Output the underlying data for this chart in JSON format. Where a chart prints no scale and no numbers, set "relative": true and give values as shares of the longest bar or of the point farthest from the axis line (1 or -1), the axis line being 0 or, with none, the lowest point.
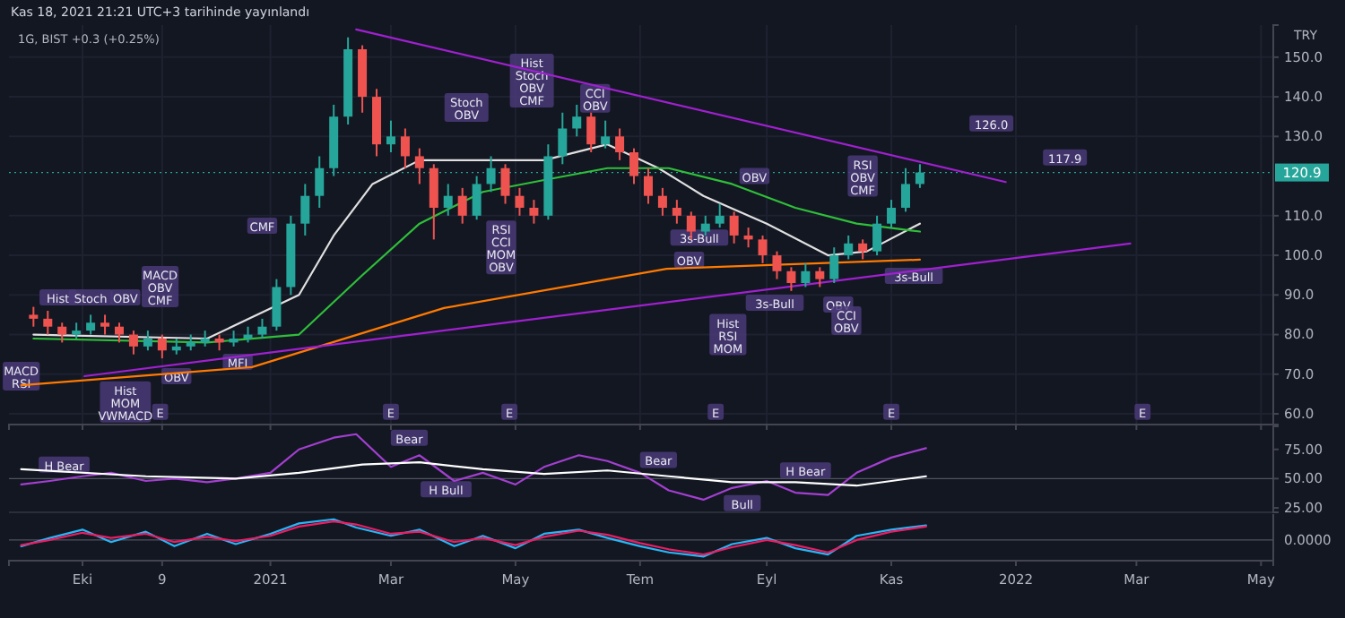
{
  "chart_data": [
    {
      "type": "candlestick",
      "title": "Kas 18, 2021 21:21 UTC+3 tarihinde yayınlandı",
      "subtitle": "1G, BIST  +0.3 (+0.25%)",
      "ylabel": "TRY",
      "xlim": [
        "2020-08-26",
        "2022-05-07"
      ],
      "ylim": [
        57.3,
        158.1
      ],
      "xticks": [
        {
          "value": "2020-10-01",
          "label": null
        },
        {
          "value": "2020-11-09",
          "label": null
        },
        {
          "value": "2021-01-01",
          "label": null
        },
        {
          "value": "2021-03-01",
          "label": null
        },
        {
          "value": "2021-05-01",
          "label": null
        },
        {
          "value": "2021-07-01",
          "label": null
        },
        {
          "value": "2021-09-01",
          "label": null
        },
        {
          "value": "2021-11-01",
          "label": null
        },
        {
          "value": "2022-01-01",
          "label": null
        },
        {
          "value": "2022-03-01",
          "label": null
        },
        {
          "value": "2022-05-01",
          "label": null
        }
      ],
      "yticks": [
        {
          "value": 60,
          "label": "60.0"
        },
        {
          "value": 70,
          "label": "70.0"
        },
        {
          "value": 80,
          "label": "80.0"
        },
        {
          "value": 90,
          "label": "90.0"
        },
        {
          "value": 100,
          "label": "100.0"
        },
        {
          "value": 110,
          "label": "110.0"
        },
        {
          "value": 130,
          "label": "130.0"
        },
        {
          "value": 140,
          "label": "140.0"
        },
        {
          "value": 150,
          "label": "150.0"
        }
      ],
      "tick_labels": "y",
      "grid": true,
      "x": [
        "2020-09-07",
        "2020-09-14",
        "2020-09-21",
        "2020-09-28",
        "2020-10-05",
        "2020-10-12",
        "2020-10-19",
        "2020-10-26",
        "2020-11-02",
        "2020-11-09",
        "2020-11-16",
        "2020-11-23",
        "2020-11-30",
        "2020-12-07",
        "2020-12-14",
        "2020-12-21",
        "2020-12-28",
        "2021-01-04",
        "2021-01-11",
        "2021-01-18",
        "2021-01-25",
        "2021-02-01",
        "2021-02-08",
        "2021-02-15",
        "2021-02-22",
        "2021-03-01",
        "2021-03-08",
        "2021-03-15",
        "2021-03-22",
        "2021-03-29",
        "2021-04-05",
        "2021-04-12",
        "2021-04-19",
        "2021-04-26",
        "2021-05-03",
        "2021-05-10",
        "2021-05-17",
        "2021-05-24",
        "2021-05-31",
        "2021-06-07",
        "2021-06-14",
        "2021-06-21",
        "2021-06-28",
        "2021-07-05",
        "2021-07-12",
        "2021-07-19",
        "2021-07-26",
        "2021-08-02",
        "2021-08-09",
        "2021-08-16",
        "2021-08-23",
        "2021-08-30",
        "2021-09-06",
        "2021-09-13",
        "2021-09-20",
        "2021-09-27",
        "2021-10-04",
        "2021-10-11",
        "2021-10-18",
        "2021-10-25",
        "2021-11-01",
        "2021-11-08",
        "2021-11-15"
      ],
      "ohlc": [
        [
          85,
          87,
          82,
          84
        ],
        [
          84,
          86,
          80,
          82
        ],
        [
          82,
          83,
          78,
          80
        ],
        [
          80,
          83,
          79,
          81
        ],
        [
          81,
          85,
          80,
          83
        ],
        [
          83,
          85,
          80,
          82
        ],
        [
          82,
          83,
          78,
          80
        ],
        [
          80,
          81,
          75,
          77
        ],
        [
          77,
          81,
          76,
          79
        ],
        [
          79,
          80,
          74,
          76
        ],
        [
          76,
          79,
          75,
          77
        ],
        [
          77,
          80,
          76,
          78
        ],
        [
          78,
          81,
          77,
          79
        ],
        [
          79,
          80,
          76,
          78
        ],
        [
          78,
          81,
          77,
          79
        ],
        [
          79,
          82,
          78,
          80
        ],
        [
          80,
          84,
          79,
          82
        ],
        [
          82,
          94,
          81,
          92
        ],
        [
          92,
          110,
          90,
          108
        ],
        [
          108,
          118,
          105,
          115
        ],
        [
          115,
          125,
          112,
          122
        ],
        [
          122,
          138,
          120,
          135
        ],
        [
          135,
          155,
          133,
          152
        ],
        [
          152,
          153,
          136,
          140
        ],
        [
          140,
          142,
          125,
          128
        ],
        [
          128,
          134,
          126,
          130
        ],
        [
          130,
          132,
          122,
          125
        ],
        [
          125,
          127,
          118,
          122
        ],
        [
          122,
          123,
          104,
          112
        ],
        [
          112,
          118,
          110,
          115
        ],
        [
          115,
          117,
          108,
          110
        ],
        [
          110,
          120,
          109,
          118
        ],
        [
          118,
          125,
          116,
          122
        ],
        [
          122,
          123,
          113,
          115
        ],
        [
          115,
          117,
          110,
          112
        ],
        [
          112,
          114,
          108,
          110
        ],
        [
          110,
          128,
          109,
          125
        ],
        [
          125,
          136,
          123,
          132
        ],
        [
          132,
          138,
          130,
          135
        ],
        [
          135,
          136,
          126,
          128
        ],
        [
          128,
          134,
          127,
          130
        ],
        [
          130,
          132,
          124,
          126
        ],
        [
          126,
          127,
          118,
          120
        ],
        [
          120,
          122,
          113,
          115
        ],
        [
          115,
          117,
          110,
          112
        ],
        [
          112,
          114,
          108,
          110
        ],
        [
          110,
          111,
          104,
          106
        ],
        [
          106,
          110,
          105,
          108
        ],
        [
          108,
          113,
          107,
          110
        ],
        [
          110,
          111,
          103,
          105
        ],
        [
          105,
          107,
          102,
          104
        ],
        [
          104,
          105,
          98,
          100
        ],
        [
          100,
          101,
          94,
          96
        ],
        [
          96,
          97,
          91,
          93
        ],
        [
          93,
          98,
          92,
          96
        ],
        [
          96,
          97,
          92,
          94
        ],
        [
          94,
          102,
          93,
          100
        ],
        [
          100,
          105,
          99,
          103
        ],
        [
          103,
          104,
          99,
          101
        ],
        [
          101,
          110,
          100,
          108
        ],
        [
          108,
          114,
          107,
          112
        ],
        [
          112,
          122,
          111,
          118
        ],
        [
          118,
          123,
          117,
          120.9
        ]
      ],
      "series": [
        {
          "type": "line",
          "color": "#e0e0e0",
          "x": [
            "2020-09-07",
            "2020-12-01",
            "2021-01-15",
            "2021-02-01",
            "2021-02-20",
            "2021-03-15",
            "2021-04-15",
            "2021-05-15",
            "2021-06-15",
            "2021-07-10",
            "2021-08-01",
            "2021-09-01",
            "2021-10-01",
            "2021-10-20",
            "2021-11-15"
          ],
          "values": [
            80,
            79,
            90,
            105,
            118,
            124,
            124,
            124,
            128,
            122,
            115,
            108,
            100,
            101,
            108
          ]
        },
        {
          "type": "line",
          "color": "#2fbf3a",
          "x": [
            "2020-09-07",
            "2020-12-01",
            "2021-01-15",
            "2021-02-15",
            "2021-03-15",
            "2021-04-15",
            "2021-05-15",
            "2021-06-15",
            "2021-07-15",
            "2021-08-15",
            "2021-09-15",
            "2021-10-15",
            "2021-11-15"
          ],
          "values": [
            79,
            78,
            80,
            95,
            108,
            116,
            119,
            122,
            122,
            118,
            112,
            108,
            106
          ]
        },
        {
          "type": "line",
          "color": "#ff7a00",
          "x": [
            "2020-09-01",
            "2020-12-23",
            "2021-03-27",
            "2021-07-14",
            "2021-11-15"
          ],
          "values": [
            67.2,
            71.8,
            86.7,
            96.6,
            98.9
          ]
        },
        {
          "type": "line",
          "color": "#a020d0",
          "x": [
            "2021-02-12",
            "2021-12-27"
          ],
          "values": [
            157,
            118.5
          ]
        },
        {
          "type": "line",
          "color": "#a020d0",
          "x": [
            "2020-10-02",
            "2022-02-26"
          ],
          "values": [
            69.5,
            103
          ]
        }
      ],
      "ref_lines": [
        {
          "axis": "y",
          "value": 120.9,
          "label": "120.9",
          "color": "#26a69a"
        }
      ],
      "annotations": [
        {
          "text": "MACD\nRSI",
          "x": "2020-09-01",
          "y": 69.5
        },
        {
          "text": "Hist",
          "x": "2020-09-19",
          "y": 89.4
        },
        {
          "text": "Stoch",
          "x": "2020-10-05",
          "y": 89.4
        },
        {
          "text": "OBV",
          "x": "2020-10-22",
          "y": 89.4
        },
        {
          "text": "MACD\nOBV\nCMF",
          "x": "2020-11-08",
          "y": 92.1
        },
        {
          "text": "Hist\nMOM\nVWMACD",
          "x": "2020-10-22",
          "y": 63
        },
        {
          "text": "OBV",
          "x": "2020-11-16",
          "y": 69.5
        },
        {
          "text": "MFI",
          "x": "2020-12-16",
          "y": 73.1
        },
        {
          "text": "CMF",
          "x": "2020-12-28",
          "y": 107.5
        },
        {
          "text": "Stoch\nOBV",
          "x": "2021-04-07",
          "y": 137.3
        },
        {
          "text": "Hist\nStoch\nOBV\nCMF",
          "x": "2021-05-09",
          "y": 144.1
        },
        {
          "text": "CCI\nOBV",
          "x": "2021-06-09",
          "y": 139.6
        },
        {
          "text": "RSI\nCCI\nMOM\nOBV",
          "x": "2021-04-24",
          "y": 102
        },
        {
          "text": "OBV",
          "x": "2021-07-25",
          "y": 98.9
        },
        {
          "text": "Hist\nRSI\nMOM",
          "x": "2021-08-13",
          "y": 80
        },
        {
          "text": "OBV",
          "x": "2021-08-26",
          "y": 120
        },
        {
          "text": "OBV",
          "x": "2021-10-06",
          "y": 87.6
        },
        {
          "text": "CCI\nOBV",
          "x": "2021-10-10",
          "y": 83.5
        },
        {
          "text": "RSI\nOBV\nCMF",
          "x": "2021-10-18",
          "y": 120
        },
        {
          "text": "3s-Bull",
          "x": "2021-07-30",
          "y": 104.5
        },
        "3s-Bull",
        {
          "text": "3s-Bull",
          "x": "2021-11-12",
          "y": 94.8
        },
        {
          "text": "126.0",
          "x": "2021-12-20",
          "y": 133.3
        },
        {
          "text": "117.9",
          "x": "2022-01-25",
          "y": 124.7
        },
        {
          "text": "E",
          "x": "2020-11-08",
          "y": 60.5
        },
        {
          "text": "E",
          "x": "2021-03-01",
          "y": 60.5
        },
        {
          "text": "E",
          "x": "2021-04-28",
          "y": 60.5
        },
        {
          "text": "E",
          "x": "2021-08-07",
          "y": 60.5
        },
        {
          "text": "E",
          "x": "2021-11-01",
          "y": 60.5
        },
        {
          "text": "E",
          "x": "2022-03-04",
          "y": 60.5
        }
      ]
    },
    {
      "type": "line",
      "xlim": [
        "2020-08-26",
        "2022-05-07"
      ],
      "ylim": [
        21.2,
        94.7
      ],
      "yticks": [
        {
          "value": 25,
          "label": "25.00"
        },
        {
          "value": 50,
          "label": "50.00"
        },
        {
          "value": 75,
          "label": "75.00"
        }
      ],
      "tick_labels": "y",
      "series": [
        {
          "color": "#a33fd1",
          "x": [
            "2020-09-01",
            "2020-09-15",
            "2020-10-01",
            "2020-10-15",
            "2020-11-01",
            "2020-11-15",
            "2020-12-01",
            "2020-12-15",
            "2021-01-01",
            "2021-01-15",
            "2021-02-01",
            "2021-02-12",
            "2021-03-01",
            "2021-03-15",
            "2021-04-01",
            "2021-04-15",
            "2021-05-01",
            "2021-05-15",
            "2021-06-01",
            "2021-06-15",
            "2021-07-01",
            "2021-07-15",
            "2021-08-01",
            "2021-08-15",
            "2021-09-01",
            "2021-09-15",
            "2021-10-01",
            "2021-10-15",
            "2021-11-01",
            "2021-11-18"
          ],
          "values": [
            45,
            48,
            52,
            55,
            48,
            50,
            47,
            50,
            55,
            75,
            85,
            88,
            60,
            70,
            48,
            55,
            45,
            60,
            70,
            65,
            55,
            40,
            32,
            42,
            48,
            38,
            36,
            55,
            68,
            76
          ]
        },
        {
          "color": "#ffffff",
          "x": [
            "2020-09-01",
            "2020-11-01",
            "2020-12-15",
            "2021-01-15",
            "2021-02-15",
            "2021-03-15",
            "2021-04-15",
            "2021-05-15",
            "2021-06-15",
            "2021-07-15",
            "2021-08-15",
            "2021-09-15",
            "2021-10-15",
            "2021-11-18"
          ],
          "values": [
            58,
            52,
            50,
            55,
            62,
            64,
            58,
            54,
            57,
            52,
            47,
            47,
            44,
            52
          ]
        }
      ],
      "ref_lines": [
        {
          "axis": "y",
          "value": 50
        }
      ],
      "annotations": [
        {
          "text": "H Bear",
          "x": "2020-09-22",
          "y": 62
        },
        {
          "text": "Bear",
          "x": "2021-03-10",
          "y": 85
        },
        {
          "text": "H Bull",
          "x": "2021-03-28",
          "y": 41
        },
        {
          "text": "Bear",
          "x": "2021-07-10",
          "y": 66
        },
        {
          "text": "Bull",
          "x": "2021-08-20",
          "y": 29
        },
        {
          "text": "H Bear",
          "x": "2021-09-20",
          "y": 57
        }
      ]
    },
    {
      "type": "line",
      "relative": true,
      "xlim": [
        "2020-08-26",
        "2022-05-07"
      ],
      "tick_labels": "x",
      "xticks": [
        {
          "value": "2020-10-01",
          "label": "Eki"
        },
        {
          "value": "2020-11-09",
          "label": "9"
        },
        {
          "value": "2021-01-01",
          "label": "2021"
        },
        {
          "value": "2021-03-01",
          "label": "Mar"
        },
        {
          "value": "2021-05-01",
          "label": "May"
        },
        {
          "value": "2021-07-01",
          "label": "Tem"
        },
        {
          "value": "2021-09-01",
          "label": "Eyl"
        },
        {
          "value": "2021-11-01",
          "label": "Kas"
        },
        {
          "value": "2022-01-01",
          "label": "2022"
        },
        {
          "value": "2022-03-01",
          "label": "Mar"
        },
        {
          "value": "2022-05-01",
          "label": "May"
        }
      ],
      "series": [
        {
          "color": "#29b6f6",
          "x": [
            "2020-09-01",
            "2020-09-15",
            "2020-10-01",
            "2020-10-15",
            "2020-11-01",
            "2020-11-15",
            "2020-12-01",
            "2020-12-15",
            "2021-01-01",
            "2021-01-15",
            "2021-02-01",
            "2021-02-12",
            "2021-03-01",
            "2021-03-15",
            "2021-04-01",
            "2021-04-15",
            "2021-05-01",
            "2021-05-15",
            "2021-06-01",
            "2021-06-15",
            "2021-07-01",
            "2021-07-15",
            "2021-08-01",
            "2021-08-15",
            "2021-09-01",
            "2021-09-15",
            "2021-10-01",
            "2021-10-15",
            "2021-11-01",
            "2021-11-18"
          ],
          "values": [
            -0.3,
            0.1,
            0.5,
            -0.1,
            0.4,
            -0.3,
            0.3,
            -0.2,
            0.3,
            0.8,
            1.0,
            0.6,
            0.2,
            0.5,
            -0.3,
            0.2,
            -0.4,
            0.3,
            0.5,
            0.1,
            -0.3,
            -0.6,
            -0.8,
            -0.2,
            0.1,
            -0.4,
            -0.7,
            0.2,
            0.5,
            0.7
          ]
        },
        {
          "color": "#e91e63",
          "x": [
            "2020-09-01",
            "2020-09-15",
            "2020-10-01",
            "2020-10-15",
            "2020-11-01",
            "2020-11-15",
            "2020-12-01",
            "2020-12-15",
            "2021-01-01",
            "2021-01-15",
            "2021-02-01",
            "2021-02-12",
            "2021-03-01",
            "2021-03-15",
            "2021-04-01",
            "2021-04-15",
            "2021-05-01",
            "2021-05-15",
            "2021-06-01",
            "2021-06-15",
            "2021-07-01",
            "2021-07-15",
            "2021-08-01",
            "2021-08-15",
            "2021-09-01",
            "2021-09-15",
            "2021-10-01",
            "2021-10-15",
            "2021-11-01",
            "2021-11-18"
          ],
          "values": [
            -0.25,
            0,
            0.35,
            0.1,
            0.3,
            -0.1,
            0.15,
            -0.05,
            0.2,
            0.65,
            0.9,
            0.75,
            0.3,
            0.4,
            -0.1,
            0.1,
            -0.25,
            0.15,
            0.45,
            0.25,
            -0.15,
            -0.45,
            -0.7,
            -0.35,
            0,
            -0.25,
            -0.6,
            0,
            0.4,
            0.65
          ]
        }
      ],
      "ref_lines": [
        {
          "axis": "y",
          "value": 0,
          "label": "0.0000"
        }
      ]
    }
  ]
}
